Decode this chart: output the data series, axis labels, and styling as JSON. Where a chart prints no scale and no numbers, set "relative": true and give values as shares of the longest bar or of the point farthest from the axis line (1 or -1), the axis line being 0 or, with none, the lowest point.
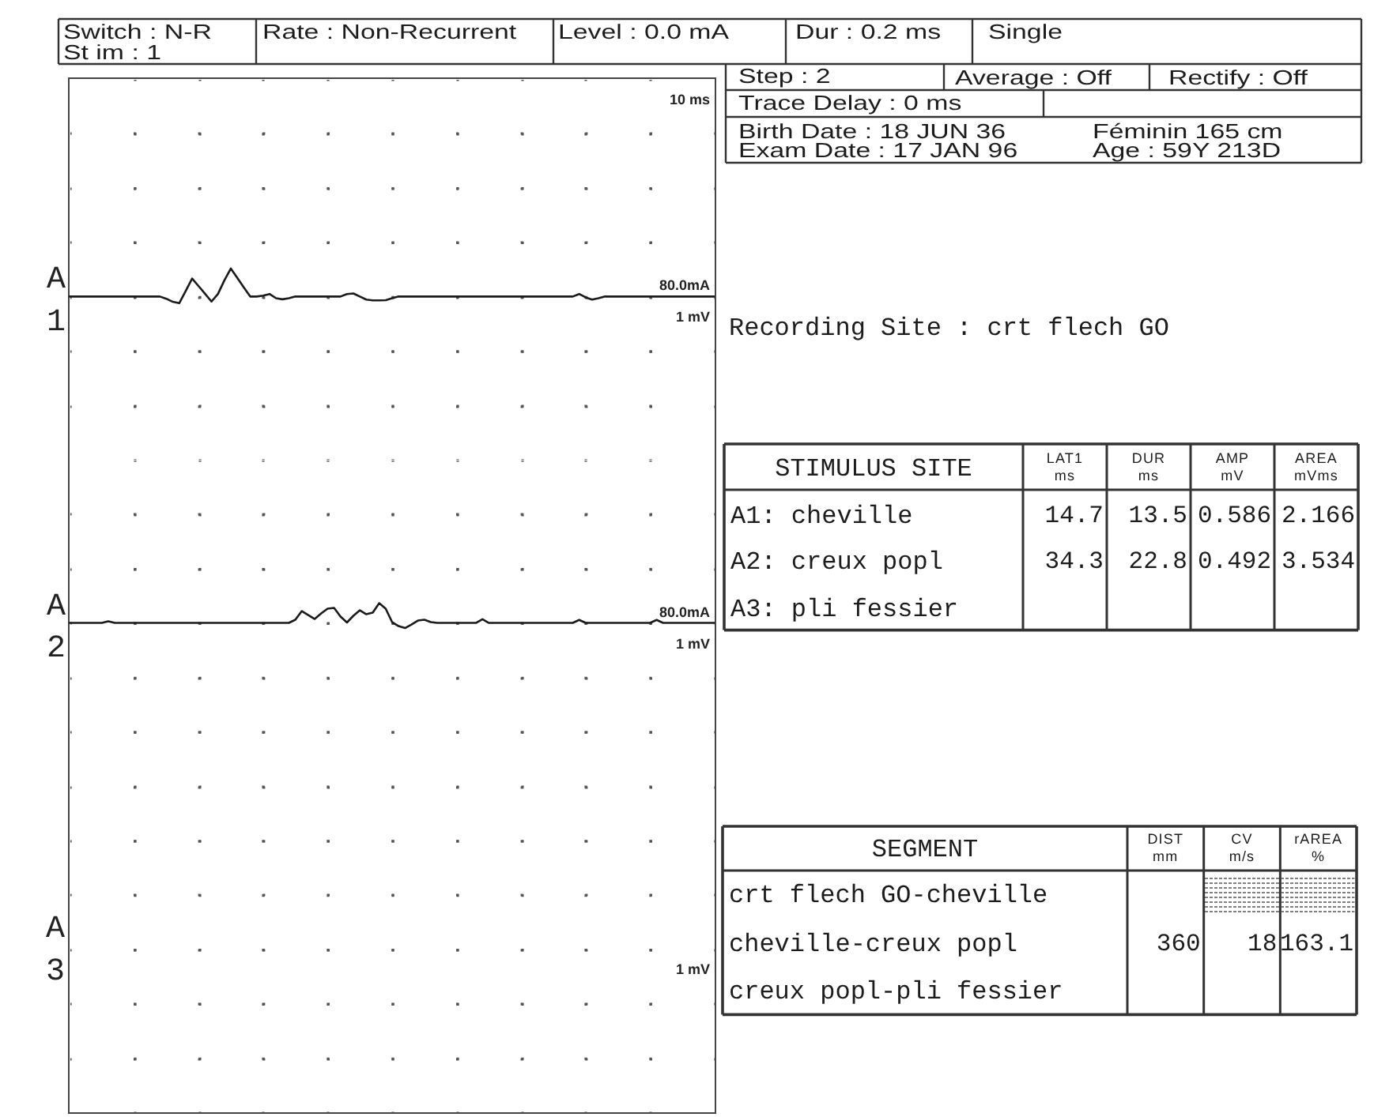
{
  "chart_data": [
    {
      "type": "other",
      "annotations": [
        "Switch : N-R",
        "St im : 1",
        "Rate : Non-Recurrent",
        "Level : 0.0 mA",
        "Dur : 0.2 ms",
        "Single",
        "Step : 2",
        "Average : Off",
        "Rectify : Off",
        "Trace Delay : 0 ms",
        "Birth Date : 18 JUN 36",
        "Féminin 165 cm",
        "Exam Date : 17 JAN 96",
        "Age : 59Y 213D"
      ]
    },
    {
      "type": "line",
      "ylabel": "A1",
      "relative": true,
      "grid": true,
      "color": "#1a1a1a",
      "annotations": [
        "10 ms",
        "80.0mA",
        "1 mV"
      ],
      "categories": [
        null,
        null,
        null,
        null,
        null,
        null,
        null,
        null,
        null,
        null,
        null,
        null,
        null,
        null,
        null,
        null,
        null,
        null,
        null,
        null,
        null,
        null,
        null,
        null,
        null,
        null,
        null,
        null,
        null,
        null,
        null,
        null,
        null,
        null,
        null,
        null,
        null,
        null,
        null,
        null,
        null,
        null,
        null,
        null,
        null,
        null,
        null,
        null,
        null,
        null,
        null,
        null,
        null,
        null,
        null,
        null,
        null,
        null,
        null,
        null,
        null,
        null,
        null,
        null,
        null,
        null,
        null,
        null,
        null,
        null,
        null,
        null,
        null,
        null,
        null,
        null,
        null,
        null,
        null,
        null,
        null,
        null,
        null,
        null,
        null,
        null,
        null,
        null,
        null,
        null,
        null,
        null,
        null,
        null,
        null,
        null,
        null,
        null,
        null,
        null,
        null
      ],
      "values": [
        0,
        0,
        0,
        0,
        0,
        0,
        0,
        0,
        0,
        0,
        0,
        0,
        0,
        0,
        0,
        -0.08,
        -0.19,
        -0.24,
        0.2,
        0.64,
        0.37,
        0.1,
        -0.18,
        0.09,
        0.58,
        1,
        0.67,
        0.33,
        0,
        0,
        0.03,
        0.09,
        -0.06,
        -0.1,
        -0.06,
        0,
        0,
        0,
        0,
        0,
        0,
        0,
        0,
        0.09,
        0.11,
        0,
        -0.11,
        -0.14,
        -0.14,
        -0.13,
        -0.06,
        0,
        0,
        0,
        0,
        0,
        0,
        0,
        0,
        0,
        0,
        0,
        0,
        0,
        0,
        0,
        0,
        0,
        0,
        0,
        0,
        0,
        0,
        0,
        0,
        0,
        0,
        0,
        0,
        0.09,
        -0.03,
        -0.11,
        -0.06,
        0,
        0,
        0,
        0,
        0,
        0,
        0,
        0,
        0,
        0,
        0,
        0,
        0,
        0,
        0,
        0,
        0,
        0
      ]
    },
    {
      "type": "line",
      "ylabel": "A2",
      "relative": true,
      "grid": true,
      "color": "#1a1a1a",
      "annotations": [
        "80.0mA",
        "1 mV"
      ],
      "categories": [
        null,
        null,
        null,
        null,
        null,
        null,
        null,
        null,
        null,
        null,
        null,
        null,
        null,
        null,
        null,
        null,
        null,
        null,
        null,
        null,
        null,
        null,
        null,
        null,
        null,
        null,
        null,
        null,
        null,
        null,
        null,
        null,
        null,
        null,
        null,
        null,
        null,
        null,
        null,
        null,
        null,
        null,
        null,
        null,
        null,
        null,
        null,
        null,
        null,
        null,
        null,
        null,
        null,
        null,
        null,
        null,
        null,
        null,
        null,
        null,
        null,
        null,
        null,
        null,
        null,
        null,
        null,
        null,
        null,
        null,
        null,
        null,
        null,
        null,
        null,
        null,
        null,
        null,
        null,
        null,
        null,
        null,
        null,
        null,
        null,
        null,
        null,
        null,
        null,
        null,
        null,
        null,
        null,
        null,
        null,
        null,
        null,
        null,
        null,
        null,
        null
      ],
      "values": [
        0,
        0,
        0,
        0,
        0,
        0,
        0.08,
        0,
        0,
        0,
        0,
        0,
        0,
        0,
        0,
        0,
        0,
        0,
        0,
        0,
        0,
        0,
        0,
        0,
        0,
        0,
        0,
        0,
        0,
        0,
        0,
        0,
        0,
        0,
        0,
        0.16,
        0.6,
        0.4,
        0.2,
        0.48,
        0.72,
        0.76,
        0.32,
        0.02,
        0.36,
        0.64,
        0.44,
        0.52,
        1,
        0.72,
        0.04,
        -0.16,
        -0.26,
        -0.08,
        0.12,
        0.16,
        0.04,
        0,
        0,
        0,
        0,
        0,
        0,
        0,
        0.19,
        0,
        0,
        0,
        0,
        0,
        0,
        0,
        0,
        0,
        0,
        0,
        0,
        0,
        0,
        0.15,
        0,
        0,
        0,
        0,
        0,
        0,
        0,
        0,
        0,
        0,
        0,
        0.15,
        0,
        0,
        0,
        0,
        0,
        0,
        0,
        0,
        0
      ]
    },
    {
      "type": "other",
      "ylabel": "A3",
      "annotations": [
        "1 mV"
      ]
    },
    {
      "type": "other",
      "title": "Recording Site : crt flech GO",
      "ylabel": "STIMULUS SITE",
      "categories": [
        "A1: cheville",
        "A2: creux popl",
        "A3: pli fessier"
      ],
      "series": [
        {
          "name": "LAT1 ms",
          "values": [
            14.7,
            34.3,
            null
          ]
        },
        {
          "name": "DUR ms",
          "values": [
            13.5,
            22.8,
            null
          ]
        },
        {
          "name": "AMP mV",
          "values": [
            0.586,
            0.492,
            null
          ]
        },
        {
          "name": "AREA mVms",
          "values": [
            2.166,
            3.534,
            null
          ]
        }
      ],
      "data_labels": true
    },
    {
      "type": "other",
      "ylabel": "SEGMENT",
      "categories": [
        "crt flech GO-cheville",
        "cheville-creux popl",
        "creux popl-pli fessier"
      ],
      "series": [
        {
          "name": "DIST mm",
          "values": [
            null,
            360,
            null
          ]
        },
        {
          "name": "CV m/s",
          "values": [
            null,
            18,
            null
          ]
        },
        {
          "name": "rAREA %",
          "values": [
            null,
            163.1,
            null
          ]
        }
      ],
      "data_labels": true
    }
  ]
}
